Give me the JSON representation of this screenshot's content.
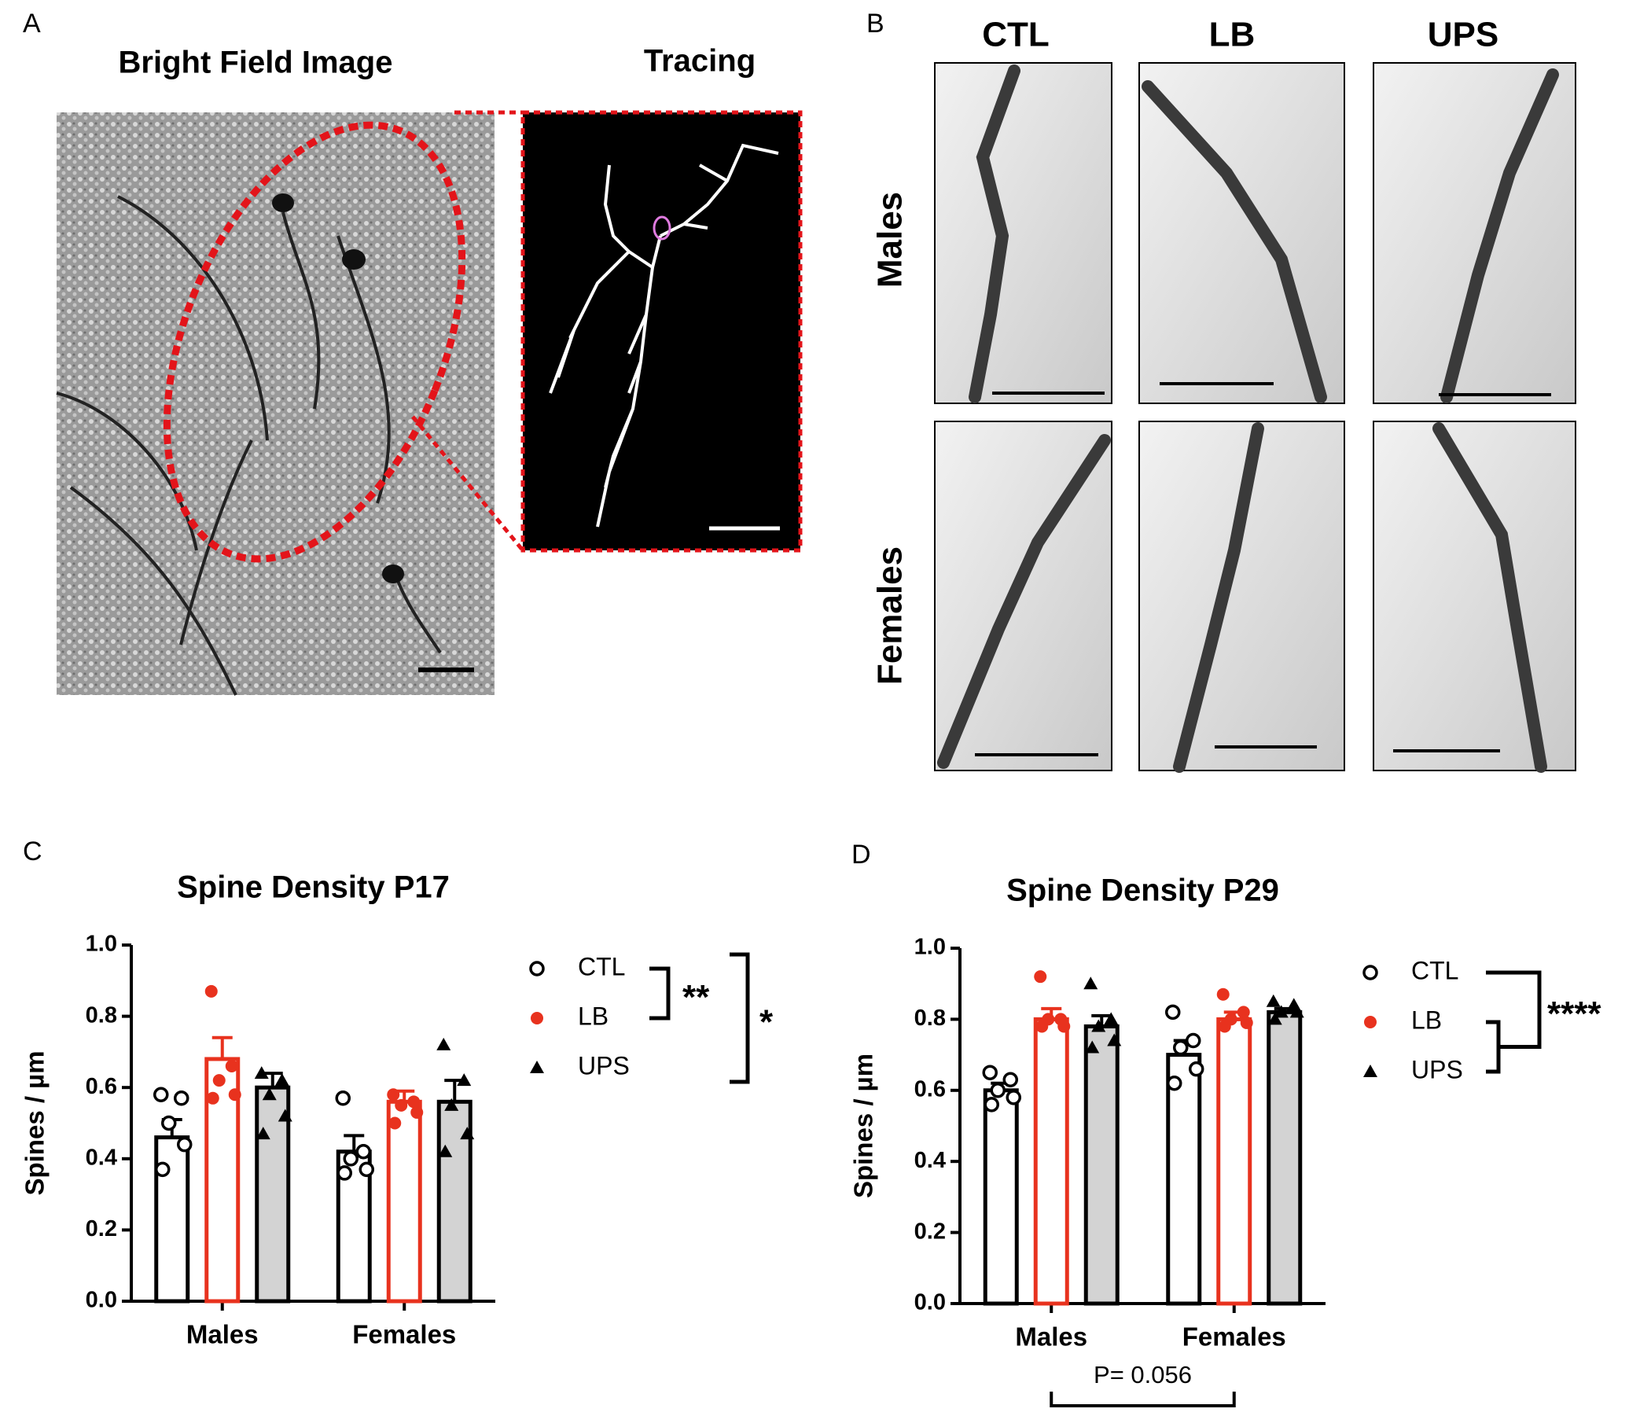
{
  "panels": {
    "A": {
      "letter": "A",
      "image_title": "Bright Field Image",
      "tracing_title": "Tracing"
    },
    "B": {
      "letter": "B",
      "columns": [
        "CTL",
        "LB",
        "UPS"
      ],
      "rows": [
        "Males",
        "Females"
      ]
    }
  },
  "chart_data": [
    {
      "type": "bar",
      "letter": "C",
      "title": "Spine Density P17",
      "y_label": "Spines / µm",
      "categories": [
        "Males",
        "Females"
      ],
      "ylim": [
        0,
        1
      ],
      "yticks": [
        {
          "value": 0,
          "label": "0.0"
        },
        0.2,
        0.4,
        0.6,
        0.8,
        {
          "value": 1,
          "label": "1.0"
        }
      ],
      "series": [
        {
          "name": "CTL",
          "color": "#000000",
          "fill": "#ffffff",
          "marker": "open-circle",
          "values": [
            0.46,
            0.42
          ],
          "errors": [
            0.05,
            0.045
          ],
          "points": [
            [
              0.58,
              0.57,
              0.5,
              0.44,
              0.37
            ],
            [
              0.57,
              0.42,
              0.4,
              0.37,
              0.36
            ]
          ]
        },
        {
          "name": "LB",
          "color": "#e8321e",
          "fill": "#ffffff",
          "marker": "filled-circle",
          "values": [
            0.68,
            0.56
          ],
          "errors": [
            0.06,
            0.03
          ],
          "points": [
            [
              0.87,
              0.66,
              0.62,
              0.58,
              0.57
            ],
            [
              0.58,
              0.56,
              0.55,
              0.53,
              0.5
            ]
          ]
        },
        {
          "name": "UPS",
          "color": "#000000",
          "fill": "#d3d3d3",
          "marker": "triangle",
          "values": [
            0.6,
            0.56
          ],
          "errors": [
            0.04,
            0.06
          ],
          "points": [
            [
              0.64,
              0.62,
              0.58,
              0.52,
              0.47
            ],
            [
              0.72,
              0.62,
              0.55,
              0.47,
              0.42
            ]
          ]
        }
      ],
      "annotations": [
        "**",
        "*"
      ]
    },
    {
      "type": "bar",
      "letter": "D",
      "title": "Spine Density P29",
      "y_label": "Spines / µm",
      "categories": [
        "Males",
        "Females"
      ],
      "ylim": [
        0,
        1
      ],
      "yticks": [
        {
          "value": 0,
          "label": "0.0"
        },
        0.2,
        0.4,
        0.6,
        0.8,
        {
          "value": 1,
          "label": "1.0"
        }
      ],
      "series": [
        {
          "name": "CTL",
          "color": "#000000",
          "fill": "#ffffff",
          "marker": "open-circle",
          "values": [
            0.6,
            0.7
          ],
          "errors": [
            0.02,
            0.04
          ],
          "points": [
            [
              0.65,
              0.63,
              0.6,
              0.58,
              0.56
            ],
            [
              0.82,
              0.74,
              0.72,
              0.66,
              0.62
            ]
          ]
        },
        {
          "name": "LB",
          "color": "#e8321e",
          "fill": "#ffffff",
          "marker": "filled-circle",
          "values": [
            0.8,
            0.8
          ],
          "errors": [
            0.03,
            0.02
          ],
          "points": [
            [
              0.92,
              0.8,
              0.8,
              0.78,
              0.78
            ],
            [
              0.87,
              0.82,
              0.8,
              0.79,
              0.78
            ]
          ]
        },
        {
          "name": "UPS",
          "color": "#000000",
          "fill": "#d3d3d3",
          "marker": "triangle",
          "values": [
            0.78,
            0.82
          ],
          "errors": [
            0.03,
            0.01
          ],
          "points": [
            [
              0.9,
              0.8,
              0.78,
              0.74,
              0.72
            ],
            [
              0.85,
              0.84,
              0.82,
              0.82,
              0.8
            ]
          ]
        }
      ],
      "annotations": [
        "****",
        "P= 0.056"
      ]
    }
  ]
}
